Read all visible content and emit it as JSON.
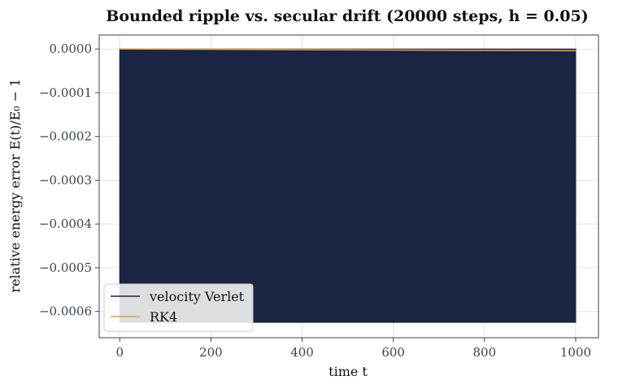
{
  "chart_data": {
    "type": "line",
    "title": "Bounded ripple vs. secular drift (20000 steps, h = 0.05)",
    "xlabel": "time  t",
    "ylabel": "relative energy error  E(t)/E₀ − 1",
    "xlim": [
      -45,
      1050
    ],
    "ylim": [
      -0.00066,
      3.2e-05
    ],
    "x_ticks": [
      0,
      200,
      400,
      600,
      800,
      1000
    ],
    "x_tick_labels": [
      "0",
      "200",
      "400",
      "600",
      "800",
      "1000"
    ],
    "y_ticks": [
      0.0,
      -0.0001,
      -0.0002,
      -0.0003,
      -0.0004,
      -0.0005,
      -0.0006
    ],
    "y_tick_labels": [
      "0.0000",
      "−0.0001",
      "−0.0002",
      "−0.0003",
      "−0.0004",
      "−0.0005",
      "−0.0006"
    ],
    "grid": true,
    "legend_position": "lower-left",
    "series": [
      {
        "name": "velocity Verlet",
        "color": "#1b2440",
        "kind": "bounded oscillation",
        "x": [
          0,
          1000
        ],
        "y_upper": [
          0.0,
          0.0
        ],
        "y_lower": [
          -0.000625,
          -0.000625
        ]
      },
      {
        "name": "RK4",
        "color": "#d4a640",
        "kind": "linear drift",
        "x": [
          0,
          1000
        ],
        "y": [
          0.0,
          -4e-06
        ]
      }
    ]
  }
}
